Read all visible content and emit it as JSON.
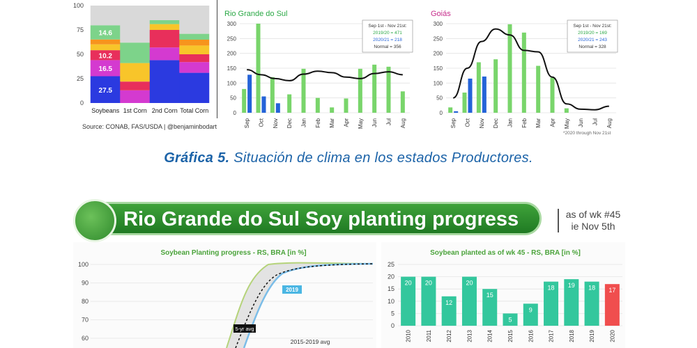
{
  "caption": {
    "prefix": "Gráfica 5.",
    "text": "Situación de clima en los estados Productores."
  },
  "top_left_source": "Source: CONAB, FAS/USDA | @benjaminbodart",
  "banner": {
    "title": "Rio Grande do Sul Soy planting progress",
    "asof_line1": "as of wk #45",
    "asof_line2": "ie Nov 5th"
  },
  "colors": {
    "green_bar": "#79d56b",
    "blue_bar": "#2463d8",
    "teal_bar": "#33c79d",
    "red_bar": "#f04e4e",
    "banner": "#2a8c2c"
  },
  "chart_data": [
    {
      "type": "bar",
      "stacked": true,
      "categories": [
        "Soybeans",
        "1st Corn",
        "2nd Corn",
        "Total Corn"
      ],
      "ylim": [
        0,
        100
      ],
      "yticks": [
        0,
        25,
        50,
        75,
        100
      ],
      "segments": [
        {
          "color": "#2b3ae0",
          "values": [
            27.5,
            0,
            44,
            31
          ]
        },
        {
          "color": "#d43ad0",
          "values": [
            16.5,
            13,
            13,
            11
          ]
        },
        {
          "color": "#e82f5b",
          "values": [
            10.2,
            9,
            18,
            8
          ]
        },
        {
          "color": "#f8c52a",
          "values": [
            6,
            19,
            6,
            9
          ]
        },
        {
          "color": "#f7941d",
          "values": [
            5,
            0,
            0,
            6
          ]
        },
        {
          "color": "#7dd38a",
          "values": [
            14.6,
            21,
            4,
            6
          ]
        },
        {
          "color": "#d9d9d9",
          "values": [
            20.2,
            38,
            15,
            29
          ]
        }
      ],
      "data_labels": [
        {
          "bar": 0,
          "segment": 0,
          "text": "27.5"
        },
        {
          "bar": 0,
          "segment": 1,
          "text": "16.5"
        },
        {
          "bar": 0,
          "segment": 2,
          "text": "10.2"
        },
        {
          "bar": 0,
          "segment": 5,
          "text": "14.6"
        }
      ]
    },
    {
      "type": "bar",
      "title": "Rio Grande do Sul",
      "categories": [
        "Sep",
        "Oct",
        "Nov",
        "Dec",
        "Jan",
        "Feb",
        "Mar",
        "Apr",
        "May",
        "Jun",
        "Jul",
        "Aug"
      ],
      "ylim": [
        0,
        300
      ],
      "yticks": [
        0,
        50,
        100,
        150,
        200,
        250,
        300
      ],
      "series": [
        {
          "name": "2019/20",
          "values": [
            80,
            300,
            120,
            62,
            148,
            50,
            18,
            48,
            148,
            162,
            155,
            72
          ]
        },
        {
          "name": "2020/21",
          "values": [
            128,
            55,
            32,
            null,
            null,
            null,
            null,
            null,
            null,
            null,
            null,
            null
          ]
        },
        {
          "name": "Normal",
          "values": [
            145,
            128,
            115,
            108,
            130,
            140,
            135,
            120,
            115,
            132,
            138,
            128
          ]
        }
      ],
      "legend": [
        "Sep 1st - Nov 21st:",
        "2019/20 = 471",
        "2020/21 = 218",
        "Normal = 356"
      ]
    },
    {
      "type": "bar",
      "title": "Goiás",
      "categories": [
        "Sep",
        "Oct",
        "Nov",
        "Dec",
        "Jan",
        "Feb",
        "Mar",
        "Apr",
        "May",
        "Jun",
        "Jul",
        "Aug"
      ],
      "ylim": [
        0,
        300
      ],
      "yticks": [
        0,
        50,
        100,
        150,
        200,
        250,
        300
      ],
      "series": [
        {
          "name": "2019/20",
          "values": [
            18,
            68,
            170,
            180,
            298,
            270,
            158,
            118,
            15,
            null,
            null,
            null
          ]
        },
        {
          "name": "2020/21",
          "values": [
            5,
            115,
            122,
            null,
            null,
            null,
            null,
            null,
            null,
            null,
            null,
            null
          ]
        },
        {
          "name": "Normal",
          "values": [
            50,
            150,
            240,
            282,
            262,
            210,
            205,
            120,
            30,
            12,
            10,
            22
          ]
        }
      ],
      "legend": [
        "Sep 1st - Nov 21st:",
        "2019/20 = 169",
        "2020/21 = 243",
        "Normal = 328"
      ],
      "footnote": "*2020 through Nov 21st"
    },
    {
      "type": "line",
      "title": "Soybean Planting progress - RS, BRA [in %]",
      "ylim": [
        60,
        100
      ],
      "yticks": [
        60,
        70,
        80,
        90,
        100
      ],
      "annotations": [
        "2019",
        "5-yr avg",
        "2015-2019 avg"
      ]
    },
    {
      "type": "bar",
      "title": "Soybean planted as of wk 45 - RS, BRA [in %]",
      "categories": [
        "2010",
        "2011",
        "2012",
        "2013",
        "2014",
        "2015",
        "2016",
        "2017",
        "2018",
        "2019",
        "2020"
      ],
      "values": [
        20,
        20,
        12,
        20,
        15,
        5,
        9,
        18,
        19,
        18,
        17
      ],
      "ylim": [
        0,
        25
      ],
      "yticks": [
        0,
        5,
        10,
        15,
        20,
        25
      ]
    }
  ]
}
